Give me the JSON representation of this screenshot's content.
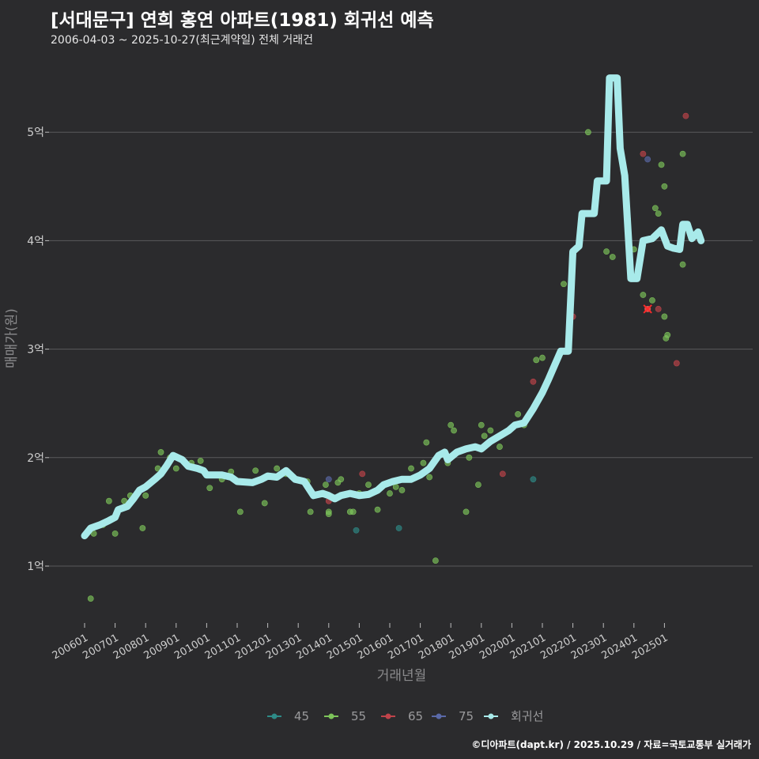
{
  "title": "[서대문구] 연희 홍연 아파트(1981) 회귀선 예측",
  "subtitle": "2006-04-03 ~ 2025-10-27(최근계약일) 전체 거래건",
  "credit": "©디아파트(dapt.kr) / 2025.10.29 / 자료=국토교통부 실거래가",
  "colors": {
    "background": "#2b2b2d",
    "grid": "#5a5a5c",
    "regression": "#a8eaea",
    "45": "#2e8b87",
    "55": "#7dc45a",
    "65": "#c0434a",
    "75": "#5a69a8"
  },
  "chart_data": {
    "type": "scatter",
    "xlabel": "거래년월",
    "ylabel": "매매가(원)",
    "xlim": [
      2006.0,
      2025.85
    ],
    "ylim": [
      0.55,
      5.95
    ],
    "x_ticks": [
      {
        "v": 2006.0,
        "label": "200601"
      },
      {
        "v": 2007.0,
        "label": "200701"
      },
      {
        "v": 2008.0,
        "label": "200801"
      },
      {
        "v": 2009.0,
        "label": "200901"
      },
      {
        "v": 2010.0,
        "label": "201001"
      },
      {
        "v": 2011.0,
        "label": "201101"
      },
      {
        "v": 2012.0,
        "label": "201201"
      },
      {
        "v": 2013.0,
        "label": "201301"
      },
      {
        "v": 2014.0,
        "label": "201401"
      },
      {
        "v": 2015.0,
        "label": "201501"
      },
      {
        "v": 2016.0,
        "label": "201601"
      },
      {
        "v": 2017.0,
        "label": "201701"
      },
      {
        "v": 2018.0,
        "label": "201801"
      },
      {
        "v": 2019.0,
        "label": "201901"
      },
      {
        "v": 2020.0,
        "label": "202001"
      },
      {
        "v": 2021.0,
        "label": "202101"
      },
      {
        "v": 2022.0,
        "label": "202201"
      },
      {
        "v": 2023.0,
        "label": "202301"
      },
      {
        "v": 2024.0,
        "label": "202401"
      },
      {
        "v": 2025.0,
        "label": "202501"
      }
    ],
    "y_ticks": [
      {
        "v": 1,
        "label": "1억"
      },
      {
        "v": 2,
        "label": "2억"
      },
      {
        "v": 3,
        "label": "3억"
      },
      {
        "v": 4,
        "label": "4억"
      },
      {
        "v": 5,
        "label": "5억"
      }
    ],
    "legend": [
      {
        "key": "45",
        "label": "45"
      },
      {
        "key": "55",
        "label": "55"
      },
      {
        "key": "65",
        "label": "65"
      },
      {
        "key": "75",
        "label": "75"
      },
      {
        "key": "reg",
        "label": "회귀선"
      }
    ],
    "series": [
      {
        "name": "45",
        "points": [
          [
            2014.9,
            1.33
          ],
          [
            2016.3,
            1.35
          ],
          [
            2020.7,
            1.8
          ]
        ]
      },
      {
        "name": "55",
        "points": [
          [
            2006.2,
            0.7
          ],
          [
            2006.3,
            1.3
          ],
          [
            2006.6,
            1.38
          ],
          [
            2006.8,
            1.6
          ],
          [
            2007.0,
            1.3
          ],
          [
            2007.3,
            1.6
          ],
          [
            2007.5,
            1.65
          ],
          [
            2007.9,
            1.35
          ],
          [
            2008.0,
            1.65
          ],
          [
            2008.4,
            1.9
          ],
          [
            2008.5,
            2.05
          ],
          [
            2008.8,
            2.0
          ],
          [
            2009.0,
            1.9
          ],
          [
            2009.5,
            1.95
          ],
          [
            2009.8,
            1.97
          ],
          [
            2010.1,
            1.72
          ],
          [
            2010.5,
            1.8
          ],
          [
            2010.8,
            1.87
          ],
          [
            2011.1,
            1.5
          ],
          [
            2011.6,
            1.88
          ],
          [
            2011.9,
            1.58
          ],
          [
            2012.3,
            1.9
          ],
          [
            2012.6,
            1.85
          ],
          [
            2013.3,
            1.78
          ],
          [
            2013.4,
            1.5
          ],
          [
            2013.9,
            1.75
          ],
          [
            2014.0,
            1.5
          ],
          [
            2014.0,
            1.48
          ],
          [
            2014.3,
            1.77
          ],
          [
            2014.4,
            1.8
          ],
          [
            2014.7,
            1.5
          ],
          [
            2014.8,
            1.5
          ],
          [
            2015.0,
            1.67
          ],
          [
            2015.3,
            1.75
          ],
          [
            2015.6,
            1.52
          ],
          [
            2016.0,
            1.67
          ],
          [
            2016.2,
            1.73
          ],
          [
            2016.4,
            1.7
          ],
          [
            2016.7,
            1.9
          ],
          [
            2017.1,
            1.95
          ],
          [
            2017.2,
            2.14
          ],
          [
            2017.3,
            1.82
          ],
          [
            2017.5,
            1.05
          ],
          [
            2017.9,
            1.95
          ],
          [
            2018.0,
            2.3
          ],
          [
            2018.1,
            2.25
          ],
          [
            2018.5,
            1.5
          ],
          [
            2018.6,
            2.0
          ],
          [
            2018.9,
            1.75
          ],
          [
            2019.0,
            2.3
          ],
          [
            2019.1,
            2.2
          ],
          [
            2019.3,
            2.25
          ],
          [
            2019.6,
            2.1
          ],
          [
            2020.2,
            2.4
          ],
          [
            2020.4,
            2.3
          ],
          [
            2020.8,
            2.9
          ],
          [
            2021.0,
            2.92
          ],
          [
            2021.7,
            3.6
          ],
          [
            2022.2,
            3.95
          ],
          [
            2022.5,
            5.0
          ],
          [
            2023.1,
            3.9
          ],
          [
            2023.3,
            3.85
          ],
          [
            2023.8,
            4.2
          ],
          [
            2024.0,
            3.92
          ],
          [
            2024.3,
            3.5
          ],
          [
            2024.6,
            3.45
          ],
          [
            2024.7,
            4.3
          ],
          [
            2024.8,
            4.25
          ],
          [
            2024.9,
            4.7
          ],
          [
            2025.0,
            4.5
          ],
          [
            2025.05,
            3.1
          ],
          [
            2025.1,
            3.13
          ],
          [
            2025.6,
            4.8
          ],
          [
            2025.6,
            3.78
          ],
          [
            2025.0,
            3.3
          ]
        ]
      },
      {
        "name": "65",
        "points": [
          [
            2014.0,
            1.6
          ],
          [
            2015.1,
            1.85
          ],
          [
            2019.7,
            1.85
          ],
          [
            2020.7,
            2.7
          ],
          [
            2022.0,
            3.3
          ],
          [
            2024.3,
            4.8
          ],
          [
            2024.8,
            3.37
          ],
          [
            2025.4,
            2.87
          ],
          [
            2025.7,
            5.15
          ]
        ]
      },
      {
        "name": "75",
        "points": [
          [
            2014.0,
            1.8
          ],
          [
            2024.45,
            4.75
          ]
        ]
      }
    ],
    "highlight": {
      "x": 2024.45,
      "y": 3.37
    },
    "regression": [
      [
        2006.0,
        1.28
      ],
      [
        2006.2,
        1.35
      ],
      [
        2006.5,
        1.38
      ],
      [
        2006.8,
        1.42
      ],
      [
        2007.0,
        1.45
      ],
      [
        2007.1,
        1.52
      ],
      [
        2007.4,
        1.55
      ],
      [
        2007.6,
        1.62
      ],
      [
        2007.8,
        1.7
      ],
      [
        2008.0,
        1.73
      ],
      [
        2008.3,
        1.8
      ],
      [
        2008.5,
        1.85
      ],
      [
        2008.7,
        1.93
      ],
      [
        2008.9,
        2.02
      ],
      [
        2009.2,
        1.98
      ],
      [
        2009.4,
        1.92
      ],
      [
        2009.7,
        1.9
      ],
      [
        2009.9,
        1.88
      ],
      [
        2010.0,
        1.84
      ],
      [
        2010.5,
        1.84
      ],
      [
        2010.8,
        1.82
      ],
      [
        2011.0,
        1.78
      ],
      [
        2011.5,
        1.77
      ],
      [
        2011.8,
        1.8
      ],
      [
        2012.0,
        1.83
      ],
      [
        2012.3,
        1.82
      ],
      [
        2012.6,
        1.88
      ],
      [
        2012.9,
        1.8
      ],
      [
        2013.2,
        1.78
      ],
      [
        2013.5,
        1.65
      ],
      [
        2013.8,
        1.67
      ],
      [
        2014.0,
        1.65
      ],
      [
        2014.2,
        1.62
      ],
      [
        2014.4,
        1.65
      ],
      [
        2014.7,
        1.67
      ],
      [
        2015.0,
        1.65
      ],
      [
        2015.3,
        1.66
      ],
      [
        2015.6,
        1.7
      ],
      [
        2015.8,
        1.75
      ],
      [
        2016.1,
        1.78
      ],
      [
        2016.4,
        1.8
      ],
      [
        2016.7,
        1.8
      ],
      [
        2017.0,
        1.84
      ],
      [
        2017.3,
        1.9
      ],
      [
        2017.6,
        2.02
      ],
      [
        2017.8,
        2.05
      ],
      [
        2017.9,
        1.98
      ],
      [
        2018.2,
        2.05
      ],
      [
        2018.5,
        2.08
      ],
      [
        2018.8,
        2.1
      ],
      [
        2019.0,
        2.08
      ],
      [
        2019.3,
        2.15
      ],
      [
        2019.6,
        2.2
      ],
      [
        2019.9,
        2.25
      ],
      [
        2020.1,
        2.3
      ],
      [
        2020.4,
        2.32
      ],
      [
        2020.7,
        2.45
      ],
      [
        2021.0,
        2.6
      ],
      [
        2021.2,
        2.72
      ],
      [
        2021.4,
        2.85
      ],
      [
        2021.6,
        2.98
      ],
      [
        2021.85,
        2.98
      ],
      [
        2022.0,
        3.9
      ],
      [
        2022.2,
        3.95
      ],
      [
        2022.3,
        4.25
      ],
      [
        2022.7,
        4.25
      ],
      [
        2022.8,
        4.55
      ],
      [
        2023.1,
        4.55
      ],
      [
        2023.2,
        5.5
      ],
      [
        2023.45,
        5.5
      ],
      [
        2023.55,
        4.85
      ],
      [
        2023.7,
        4.6
      ],
      [
        2023.9,
        3.65
      ],
      [
        2024.1,
        3.65
      ],
      [
        2024.3,
        4.0
      ],
      [
        2024.6,
        4.02
      ],
      [
        2024.9,
        4.1
      ],
      [
        2025.1,
        3.95
      ],
      [
        2025.3,
        3.93
      ],
      [
        2025.5,
        3.92
      ],
      [
        2025.6,
        4.15
      ],
      [
        2025.75,
        4.15
      ],
      [
        2025.9,
        4.02
      ],
      [
        2026.1,
        4.08
      ],
      [
        2026.2,
        4.0
      ]
    ]
  }
}
